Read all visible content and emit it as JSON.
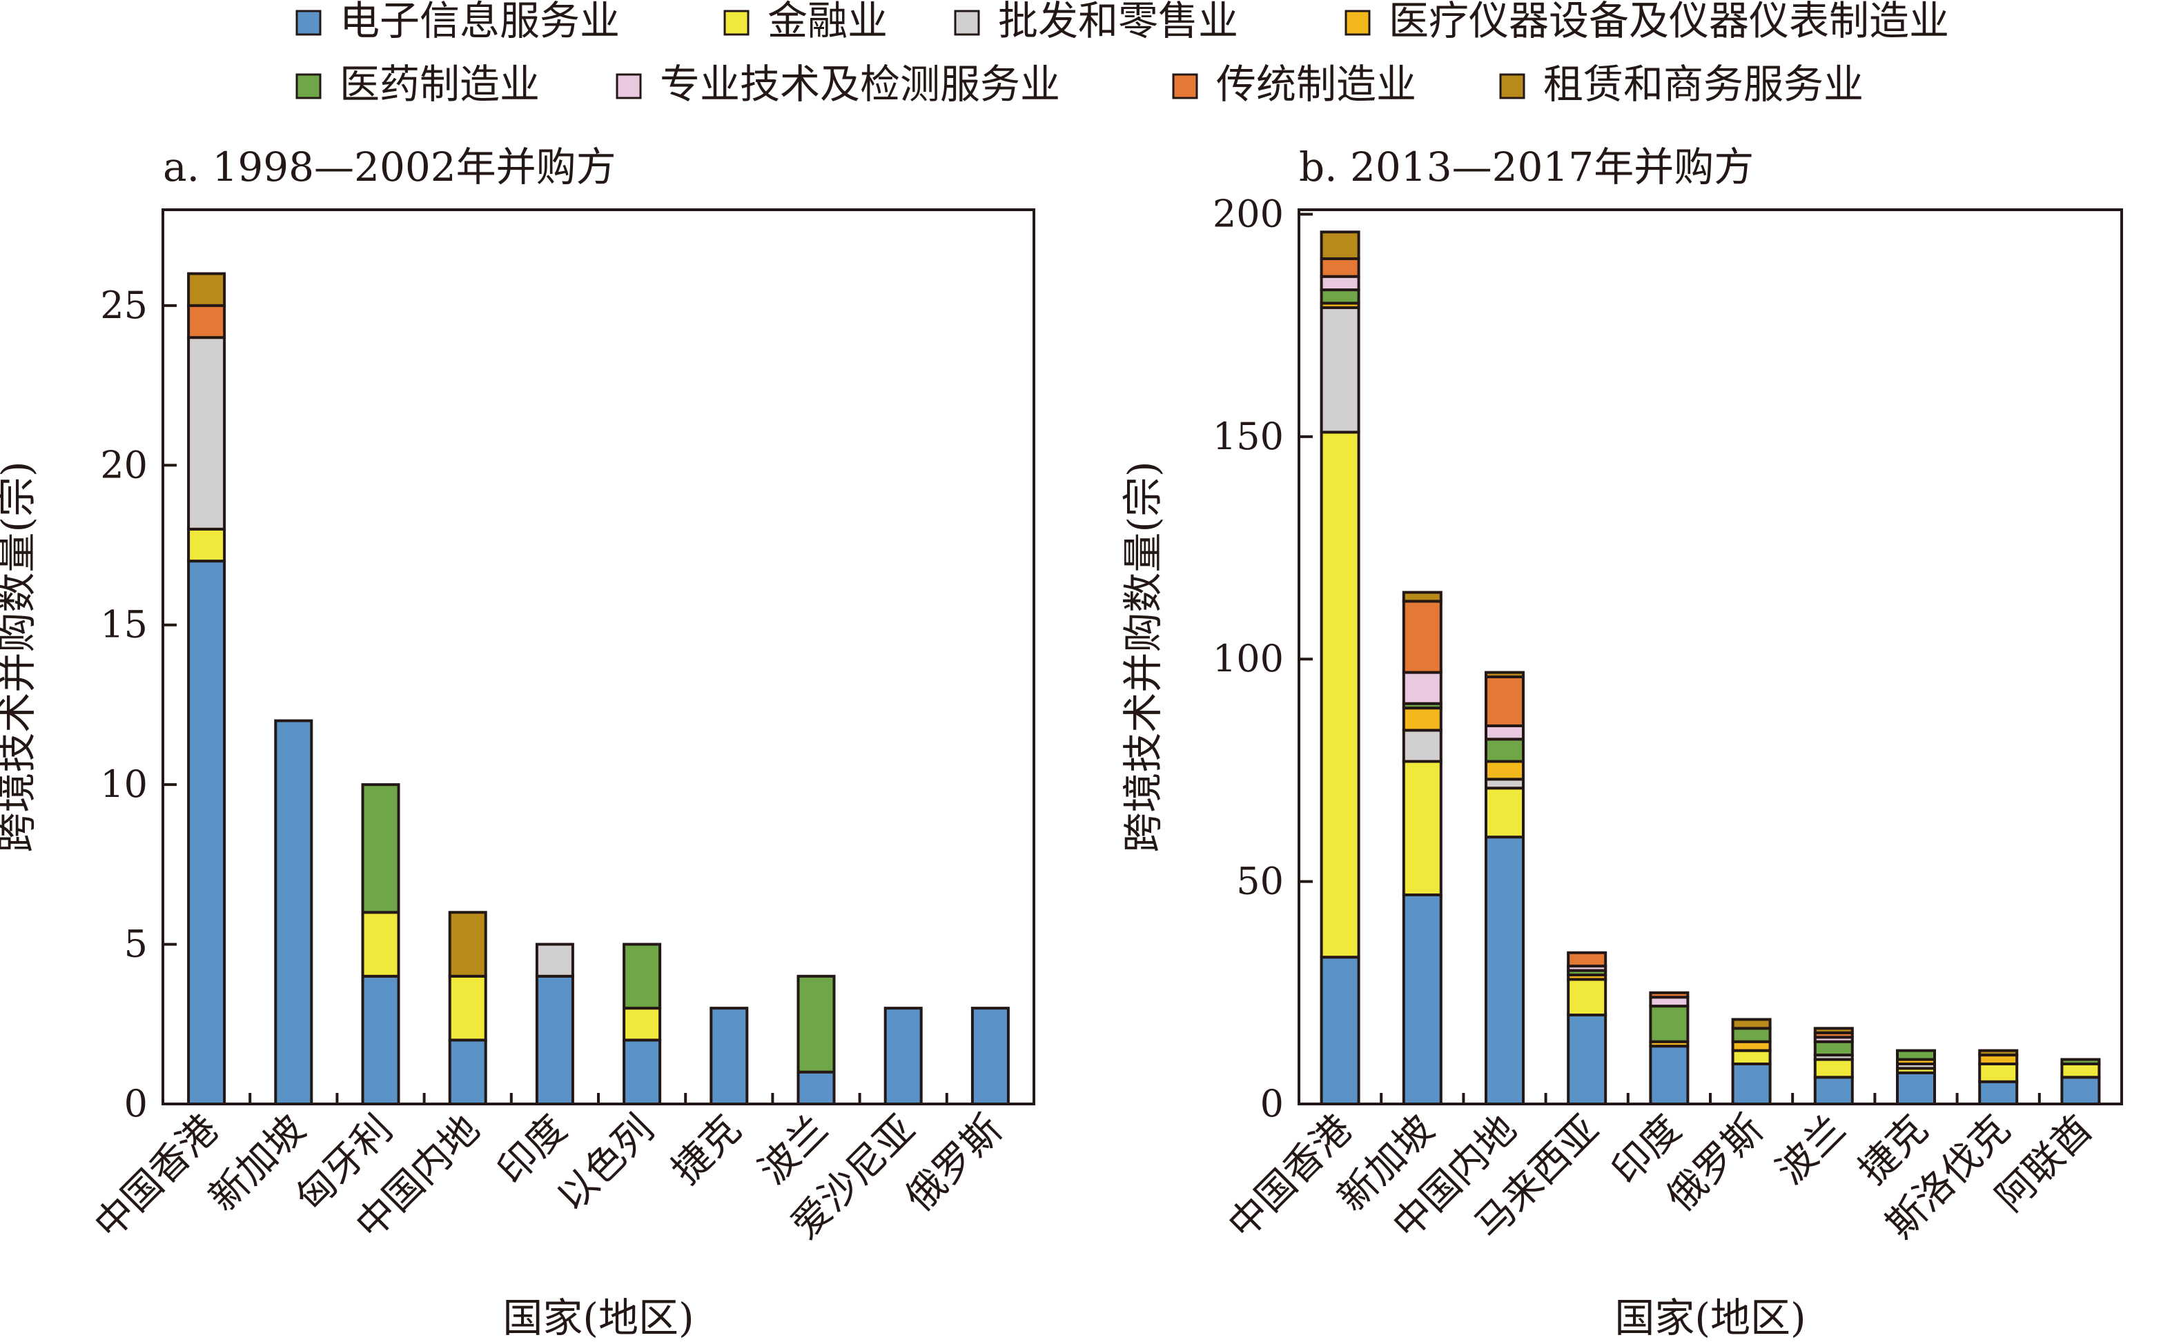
{
  "legend": [
    {
      "name": "电子信息服务业",
      "color": "#5b93c9"
    },
    {
      "name": "金融业",
      "color": "#f0e93c"
    },
    {
      "name": "批发和零售业",
      "color": "#d1cfcf"
    },
    {
      "name": "医疗仪器设备及仪器仪表制造业",
      "color": "#f3b81b"
    },
    {
      "name": "医药制造业",
      "color": "#6fa748"
    },
    {
      "name": "专业技术及检测服务业",
      "color": "#e9c9e0"
    },
    {
      "name": "传统制造业",
      "color": "#e37935"
    },
    {
      "name": "租赁和商务服务业",
      "color": "#b88a1a"
    }
  ],
  "chart_data": [
    {
      "type": "bar",
      "stacked": true,
      "title": "a. 1998—2002年并购方",
      "xlabel": "国家(地区)",
      "ylabel": "跨境技术并购数量(宗)",
      "ylim": [
        0,
        28
      ],
      "yticks": [
        0,
        5,
        10,
        15,
        20,
        25
      ],
      "categories": [
        "中国香港",
        "新加坡",
        "匈牙利",
        "中国内地",
        "印度",
        "以色列",
        "捷克",
        "波兰",
        "爱沙尼亚",
        "俄罗斯"
      ],
      "series": [
        {
          "name": "电子信息服务业",
          "values": [
            17,
            12,
            4,
            2,
            4,
            2,
            3,
            1,
            3,
            3
          ]
        },
        {
          "name": "金融业",
          "values": [
            1,
            0,
            2,
            2,
            0,
            1,
            0,
            0,
            0,
            0
          ]
        },
        {
          "name": "批发和零售业",
          "values": [
            6,
            0,
            0,
            0,
            1,
            0,
            0,
            0,
            0,
            0
          ]
        },
        {
          "name": "医疗仪器设备及仪器仪表制造业",
          "values": [
            0,
            0,
            0,
            0,
            0,
            0,
            0,
            0,
            0,
            0
          ]
        },
        {
          "name": "医药制造业",
          "values": [
            0,
            0,
            4,
            0,
            0,
            2,
            0,
            3,
            0,
            0
          ]
        },
        {
          "name": "专业技术及检测服务业",
          "values": [
            0,
            0,
            0,
            0,
            0,
            0,
            0,
            0,
            0,
            0
          ]
        },
        {
          "name": "传统制造业",
          "values": [
            1,
            0,
            0,
            0,
            0,
            0,
            0,
            0,
            0,
            0
          ]
        },
        {
          "name": "租赁和商务服务业",
          "values": [
            1,
            0,
            0,
            2,
            0,
            0,
            0,
            0,
            0,
            0
          ]
        }
      ]
    },
    {
      "type": "bar",
      "stacked": true,
      "title": "b. 2013—2017年并购方",
      "xlabel": "国家(地区)",
      "ylabel": "跨境技术并购数量(宗)",
      "ylim": [
        0,
        201
      ],
      "yticks": [
        0,
        50,
        100,
        150,
        200
      ],
      "categories": [
        "中国香港",
        "新加坡",
        "中国内地",
        "马来西亚",
        "印度",
        "俄罗斯",
        "波兰",
        "捷克",
        "斯洛伐克",
        "阿联酋"
      ],
      "series": [
        {
          "name": "电子信息服务业",
          "values": [
            33,
            47,
            60,
            20,
            13,
            9,
            6,
            7,
            5,
            6
          ]
        },
        {
          "name": "金融业",
          "values": [
            118,
            30,
            11,
            8,
            0,
            3,
            4,
            1,
            4,
            3
          ]
        },
        {
          "name": "批发和零售业",
          "values": [
            28,
            7,
            2,
            0,
            0,
            0,
            1,
            1,
            0,
            0
          ]
        },
        {
          "name": "医疗仪器设备及仪器仪表制造业",
          "values": [
            1,
            5,
            4,
            1,
            1,
            2,
            0,
            1,
            2,
            0
          ]
        },
        {
          "name": "医药制造业",
          "values": [
            3,
            1,
            5,
            1,
            8,
            3,
            3,
            2,
            0,
            1
          ]
        },
        {
          "name": "专业技术及检测服务业",
          "values": [
            3,
            7,
            3,
            1,
            2,
            0,
            1,
            0,
            0,
            0
          ]
        },
        {
          "name": "传统制造业",
          "values": [
            4,
            16,
            11,
            3,
            1,
            0,
            1,
            0,
            0,
            0
          ]
        },
        {
          "name": "租赁和商务服务业",
          "values": [
            6,
            2,
            1,
            0,
            0,
            2,
            1,
            0,
            1,
            0
          ]
        }
      ]
    }
  ]
}
